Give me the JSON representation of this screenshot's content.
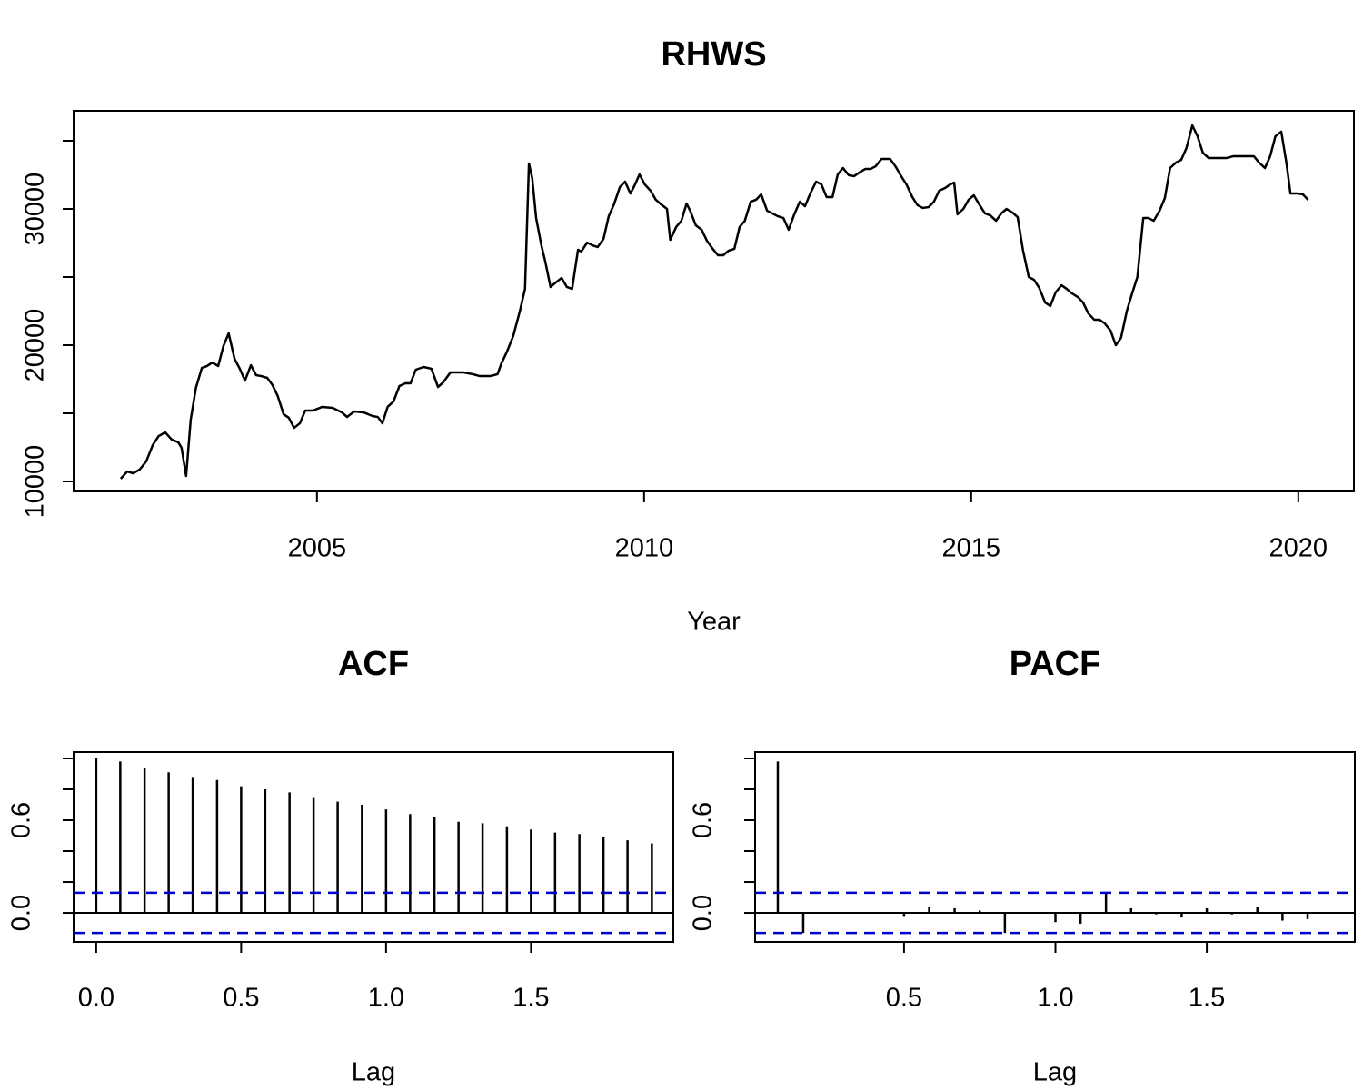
{
  "chart_data": [
    {
      "type": "line",
      "title": "RHWS",
      "xlabel": "Year",
      "color": "#000000",
      "xlim": [
        2001.28,
        2020.85
      ],
      "ylim": [
        9267,
        37200
      ],
      "xticks": [
        2005,
        2010,
        2015,
        2020
      ],
      "yticks": [
        10000,
        20000,
        30000
      ],
      "yminor": [
        15000,
        25000,
        35000
      ],
      "x": [
        2002.0,
        2002.1,
        2002.19,
        2002.29,
        2002.39,
        2002.49,
        2002.58,
        2002.68,
        2002.78,
        2002.88,
        2002.93,
        2003.0,
        2003.07,
        2003.15,
        2003.24,
        2003.32,
        2003.4,
        2003.49,
        2003.57,
        2003.65,
        2003.74,
        2003.82,
        2003.9,
        2003.99,
        2004.07,
        2004.15,
        2004.24,
        2004.32,
        2004.4,
        2004.49,
        2004.57,
        2004.65,
        2004.74,
        2004.82,
        2004.94,
        2005.08,
        2005.24,
        2005.38,
        2005.46,
        2005.57,
        2005.71,
        2005.85,
        2005.93,
        2006.0,
        2006.08,
        2006.17,
        2006.26,
        2006.35,
        2006.43,
        2006.51,
        2006.63,
        2006.75,
        2006.85,
        2006.93,
        2007.04,
        2007.24,
        2007.38,
        2007.49,
        2007.65,
        2007.76,
        2007.82,
        2007.9,
        2008.0,
        2008.1,
        2008.18,
        2008.24,
        2008.29,
        2008.35,
        2008.43,
        2008.49,
        2008.57,
        2008.65,
        2008.74,
        2008.82,
        2008.9,
        2008.99,
        2009.04,
        2009.13,
        2009.21,
        2009.29,
        2009.38,
        2009.46,
        2009.54,
        2009.63,
        2009.71,
        2009.79,
        2009.85,
        2009.93,
        2010.01,
        2010.1,
        2010.18,
        2010.26,
        2010.35,
        2010.4,
        2010.49,
        2010.57,
        2010.65,
        2010.71,
        2010.79,
        2010.88,
        2010.96,
        2011.04,
        2011.13,
        2011.21,
        2011.29,
        2011.38,
        2011.46,
        2011.54,
        2011.63,
        2011.71,
        2011.79,
        2011.88,
        2011.96,
        2012.04,
        2012.13,
        2012.21,
        2012.29,
        2012.38,
        2012.46,
        2012.54,
        2012.63,
        2012.71,
        2012.79,
        2012.88,
        2012.96,
        2013.04,
        2013.13,
        2013.21,
        2013.29,
        2013.38,
        2013.46,
        2013.54,
        2013.63,
        2013.76,
        2013.85,
        2013.93,
        2014.01,
        2014.1,
        2014.18,
        2014.26,
        2014.35,
        2014.43,
        2014.51,
        2014.6,
        2014.68,
        2014.74,
        2014.79,
        2014.88,
        2014.96,
        2015.04,
        2015.13,
        2015.21,
        2015.29,
        2015.38,
        2015.46,
        2015.54,
        2015.63,
        2015.71,
        2015.79,
        2015.88,
        2015.96,
        2016.04,
        2016.13,
        2016.21,
        2016.29,
        2016.38,
        2016.46,
        2016.54,
        2016.63,
        2016.71,
        2016.79,
        2016.88,
        2016.96,
        2017.04,
        2017.13,
        2017.21,
        2017.29,
        2017.38,
        2017.46,
        2017.54,
        2017.63,
        2017.71,
        2017.79,
        2017.88,
        2017.96,
        2018.04,
        2018.13,
        2018.21,
        2018.29,
        2018.38,
        2018.46,
        2018.54,
        2018.63,
        2018.76,
        2018.9,
        2019.01,
        2019.18,
        2019.32,
        2019.4,
        2019.49,
        2019.57,
        2019.65,
        2019.74,
        2019.82,
        2019.88,
        2019.99,
        2020.07,
        2020.15
      ],
      "values": [
        10200,
        10730,
        10600,
        10870,
        11470,
        12670,
        13330,
        13600,
        13070,
        12870,
        12470,
        10400,
        14530,
        16870,
        18330,
        18470,
        18730,
        18470,
        19930,
        20870,
        19000,
        18270,
        17400,
        18530,
        17800,
        17730,
        17600,
        17070,
        16270,
        14930,
        14670,
        13930,
        14270,
        15200,
        15200,
        15470,
        15400,
        15070,
        14730,
        15130,
        15070,
        14800,
        14730,
        14270,
        15470,
        15870,
        17000,
        17200,
        17200,
        18200,
        18400,
        18270,
        16930,
        17270,
        18000,
        18000,
        17870,
        17730,
        17730,
        17870,
        18670,
        19470,
        20670,
        22470,
        24130,
        33330,
        32270,
        29330,
        27330,
        26130,
        24270,
        24600,
        24930,
        24270,
        24130,
        27000,
        26870,
        27530,
        27330,
        27200,
        27800,
        29470,
        30330,
        31600,
        32000,
        31130,
        31670,
        32530,
        31800,
        31330,
        30670,
        30330,
        30000,
        27730,
        28670,
        29130,
        30400,
        29800,
        28800,
        28470,
        27670,
        27130,
        26600,
        26600,
        26930,
        27070,
        28670,
        29130,
        30530,
        30670,
        31070,
        29870,
        29670,
        29470,
        29330,
        28470,
        29530,
        30530,
        30200,
        31130,
        32000,
        31800,
        30870,
        30870,
        32530,
        33000,
        32470,
        32400,
        32670,
        32930,
        32930,
        33130,
        33670,
        33670,
        33070,
        32400,
        31800,
        30870,
        30270,
        30070,
        30130,
        30530,
        31330,
        31530,
        31800,
        31930,
        29600,
        30000,
        30670,
        31000,
        30270,
        29670,
        29530,
        29130,
        29670,
        30000,
        29730,
        29400,
        27000,
        25000,
        24800,
        24200,
        23130,
        22870,
        23870,
        24400,
        24130,
        23800,
        23530,
        23130,
        22330,
        21870,
        21870,
        21600,
        21070,
        20000,
        20530,
        22530,
        23800,
        25000,
        29330,
        29330,
        29130,
        29870,
        30800,
        33000,
        33400,
        33600,
        34470,
        36130,
        35330,
        34130,
        33730,
        33730,
        33730,
        33870,
        33870,
        33870,
        33400,
        33000,
        33870,
        35330,
        35670,
        33330,
        31130,
        31130,
        31070,
        30670
      ]
    },
    {
      "type": "stem",
      "title": "ACF",
      "xlabel": "Lag",
      "color": "#000000",
      "ci": 0.13,
      "ci_color": "#0000cd",
      "xlim": [
        -0.078,
        1.991
      ],
      "ylim": [
        -0.188,
        1.041
      ],
      "xticks": [
        {
          "value": 0,
          "label": "0.0"
        },
        0.5,
        {
          "value": 1,
          "label": "1.0"
        },
        1.5
      ],
      "yticks": [
        {
          "value": 0,
          "label": "0.0"
        },
        0.6
      ],
      "yminor": [
        0.2,
        0.4,
        0.8,
        1.0
      ],
      "x": [
        0,
        0.083,
        0.167,
        0.25,
        0.333,
        0.417,
        0.5,
        0.583,
        0.667,
        0.75,
        0.833,
        0.917,
        1,
        1.083,
        1.167,
        1.25,
        1.333,
        1.417,
        1.5,
        1.583,
        1.667,
        1.75,
        1.833,
        1.917
      ],
      "values": [
        1.0,
        0.98,
        0.94,
        0.91,
        0.88,
        0.86,
        0.82,
        0.8,
        0.78,
        0.75,
        0.72,
        0.7,
        0.67,
        0.64,
        0.62,
        0.59,
        0.58,
        0.56,
        0.54,
        0.52,
        0.51,
        0.49,
        0.47,
        0.45
      ]
    },
    {
      "type": "stem",
      "title": "PACF",
      "xlabel": "Lag",
      "color": "#000000",
      "ci": 0.13,
      "ci_color": "#0000cd",
      "xlim": [
        0.008,
        1.989
      ],
      "ylim": [
        -0.188,
        1.041
      ],
      "xticks": [
        0.5,
        {
          "value": 1,
          "label": "1.0"
        },
        1.5
      ],
      "yticks": [
        {
          "value": 0,
          "label": "0.0"
        },
        0.6
      ],
      "yminor": [
        0.2,
        0.4,
        0.8,
        1.0
      ],
      "x": [
        0.083,
        0.167,
        0.25,
        0.333,
        0.417,
        0.5,
        0.583,
        0.667,
        0.75,
        0.833,
        0.917,
        1,
        1.083,
        1.167,
        1.25,
        1.333,
        1.417,
        1.5,
        1.583,
        1.667,
        1.75,
        1.833,
        1.917
      ],
      "values": [
        0.98,
        -0.13,
        -0.005,
        0.005,
        0,
        -0.02,
        0.04,
        0.03,
        0.015,
        -0.13,
        0,
        -0.06,
        -0.07,
        0.13,
        0.03,
        -0.01,
        -0.03,
        0.03,
        -0.01,
        0.04,
        -0.05,
        -0.04,
        0
      ]
    }
  ]
}
